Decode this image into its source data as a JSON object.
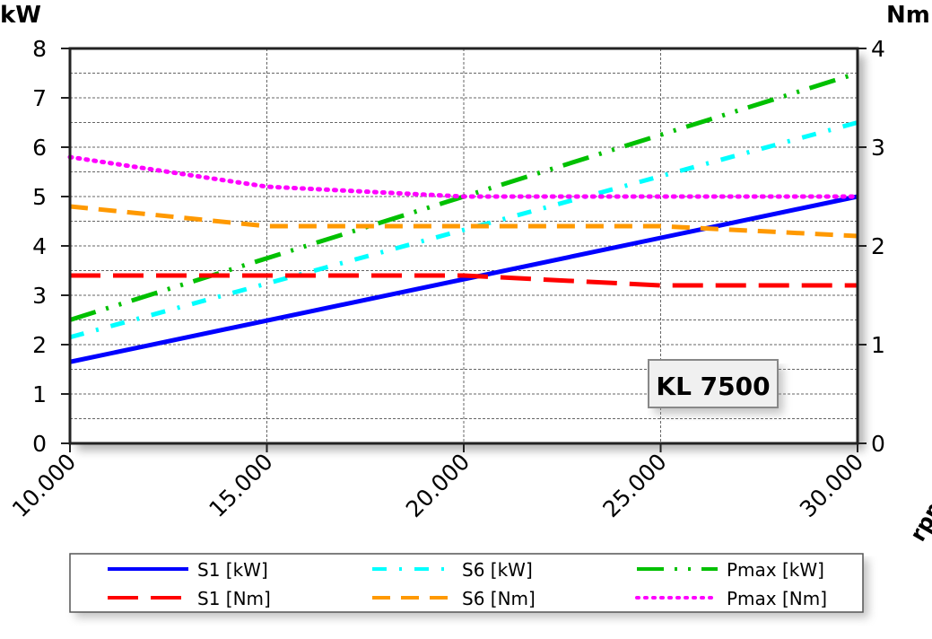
{
  "chart_data": {
    "type": "line",
    "title": "",
    "annotation": "KL 7500",
    "xlabel": "rpm",
    "ylabel_left": "kW",
    "ylabel_right": "Nm",
    "xlim": [
      10000,
      30000
    ],
    "ylim_left": [
      0,
      8
    ],
    "ylim_right": [
      0,
      4
    ],
    "x_ticks": [
      10000,
      15000,
      20000,
      25000,
      30000
    ],
    "x_tick_labels": [
      "10.000",
      "15.000",
      "20.000",
      "25.000",
      "30.000"
    ],
    "y_left_ticks": [
      "0",
      "1",
      "2",
      "3",
      "4",
      "5",
      "6",
      "7",
      "8"
    ],
    "y_right_ticks": [
      "0",
      "1",
      "2",
      "3",
      "4"
    ],
    "grid": true,
    "legend_position": "bottom",
    "series": [
      {
        "name": "S1 [kW]",
        "axis": "left",
        "color": "#0000ff",
        "dash": "solid",
        "x": [
          10000,
          30000
        ],
        "y": [
          1.65,
          5.0
        ]
      },
      {
        "name": "S6 [kW]",
        "axis": "left",
        "color": "#00ffff",
        "dash": "dash-dot",
        "x": [
          10000,
          30000
        ],
        "y": [
          2.15,
          6.5
        ]
      },
      {
        "name": "Pmax [kW]",
        "axis": "left",
        "color": "#00c000",
        "dash": "dash-dot-dot",
        "x": [
          10000,
          30000
        ],
        "y": [
          2.5,
          7.5
        ]
      },
      {
        "name": "S1 [Nm]",
        "axis": "right",
        "color": "#ff0000",
        "dash": "long-dash",
        "x": [
          10000,
          15000,
          20000,
          25000,
          30000
        ],
        "y": [
          1.7,
          1.7,
          1.7,
          1.6,
          1.6
        ]
      },
      {
        "name": "S6 [Nm]",
        "axis": "right",
        "color": "#ff9900",
        "dash": "dash",
        "x": [
          10000,
          15000,
          20000,
          25000,
          30000
        ],
        "y": [
          2.4,
          2.2,
          2.2,
          2.2,
          2.1
        ]
      },
      {
        "name": "Pmax [Nm]",
        "axis": "right",
        "color": "#ff00ff",
        "dash": "dotted",
        "x": [
          10000,
          15000,
          20000,
          25000,
          30000
        ],
        "y": [
          2.9,
          2.6,
          2.5,
          2.5,
          2.5
        ]
      }
    ]
  }
}
